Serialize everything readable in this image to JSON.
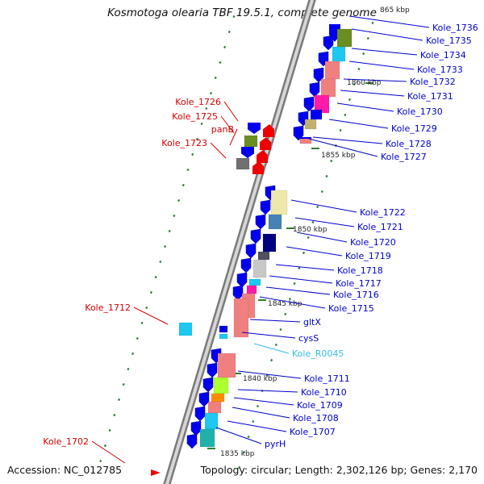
{
  "title": "Kosmotoga olearia TBF 19.5.1, complete genome",
  "footer": {
    "accession": "Accession: NC_012785",
    "summary": "Topology: circular; Length: 2,302,126 bp; Genes: 2,170"
  },
  "colors": {
    "backbone": "#9a9a9a",
    "tick": "#2e7d32",
    "label_reverse": "#d40000",
    "label_forward": "#0000cc",
    "label_rna": "#33bbee",
    "gene_blue": "#0000ee",
    "gene_red": "#ee0000"
  },
  "scale_labels": [
    "865 kbp",
    "1860 kbp",
    "1855 kbp",
    "1850 kbp",
    "1845 kbp",
    "1840 kbp",
    "1835 kbp"
  ],
  "genes": [
    {
      "name": "Kole_1736",
      "strand": "forward",
      "color": "#0000ee"
    },
    {
      "name": "Kole_1735",
      "strand": "forward",
      "color": "#6b8e23"
    },
    {
      "name": "Kole_1734",
      "strand": "forward",
      "color": "#1ec8f0"
    },
    {
      "name": "Kole_1733",
      "strand": "forward",
      "color": "#f08080"
    },
    {
      "name": "Kole_1732",
      "strand": "forward",
      "color": "#f08080"
    },
    {
      "name": "Kole_1731",
      "strand": "forward",
      "color": "#ff1aa8"
    },
    {
      "name": "Kole_1730",
      "strand": "forward",
      "color": "#0000ee"
    },
    {
      "name": "Kole_1729",
      "strand": "forward",
      "color": "#c0b070"
    },
    {
      "name": "Kole_1728",
      "strand": "forward",
      "color": "#0000ee"
    },
    {
      "name": "Kole_1727",
      "strand": "forward",
      "color": "#f08080"
    },
    {
      "name": "Kole_1726",
      "strand": "reverse",
      "color": "#0000ee"
    },
    {
      "name": "Kole_1725",
      "strand": "reverse",
      "color": "#6b8e23"
    },
    {
      "name": "panB",
      "strand": "reverse",
      "color": "#0000ee"
    },
    {
      "name": "Kole_1723",
      "strand": "reverse",
      "color": "#707070"
    },
    {
      "name": "Kole_1722",
      "strand": "forward",
      "color": "#eee8aa"
    },
    {
      "name": "Kole_1721",
      "strand": "forward",
      "color": "#4682b4"
    },
    {
      "name": "Kole_1720",
      "strand": "forward",
      "color": "#000080"
    },
    {
      "name": "Kole_1719",
      "strand": "forward",
      "color": "#505060"
    },
    {
      "name": "Kole_1718",
      "strand": "forward",
      "color": "#c8c8c8"
    },
    {
      "name": "Kole_1717",
      "strand": "forward",
      "color": "#1ec8f0"
    },
    {
      "name": "Kole_1716",
      "strand": "forward",
      "color": "#ff1aa8"
    },
    {
      "name": "Kole_1715",
      "strand": "forward",
      "color": "#f08080"
    },
    {
      "name": "gltX",
      "strand": "forward",
      "color": "#f08080"
    },
    {
      "name": "cysS",
      "strand": "forward",
      "color": "#0000ee"
    },
    {
      "name": "Kole_R0045",
      "strand": "forward",
      "color": "#1ec8f0"
    },
    {
      "name": "Kole_1712",
      "strand": "reverse",
      "color": "#1ec8f0"
    },
    {
      "name": "Kole_1711",
      "strand": "forward",
      "color": "#f08080"
    },
    {
      "name": "Kole_1710",
      "strand": "forward",
      "color": "#adff2f"
    },
    {
      "name": "Kole_1709",
      "strand": "forward",
      "color": "#ff8c00"
    },
    {
      "name": "Kole_1708",
      "strand": "forward",
      "color": "#f08080"
    },
    {
      "name": "Kole_1707",
      "strand": "forward",
      "color": "#1ec8f0"
    },
    {
      "name": "pyrH",
      "strand": "forward",
      "color": "#20b2aa"
    },
    {
      "name": "Kole_1702",
      "strand": "reverse",
      "color": "#ee0000"
    }
  ]
}
